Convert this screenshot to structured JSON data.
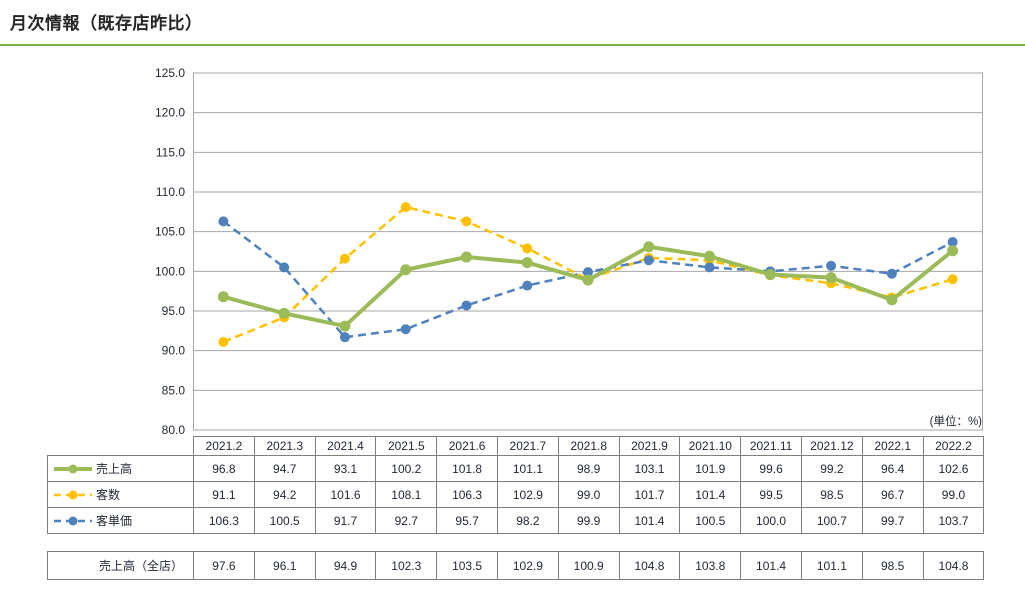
{
  "title": "月次情報（既存店昨比）",
  "unit_label": "(単位：%)",
  "colors": {
    "title_rule": "#74B33E",
    "grid": "#A6A6A6",
    "table_border": "#7F7F7F",
    "text": "#1F2633"
  },
  "chart_data": {
    "type": "line",
    "title": "月次情報（既存店昨比）",
    "unit": "%",
    "categories": [
      "2021.2",
      "2021.3",
      "2021.4",
      "2021.5",
      "2021.6",
      "2021.7",
      "2021.8",
      "2021.9",
      "2021.10",
      "2021.11",
      "2021.12",
      "2022.1",
      "2022.2"
    ],
    "series": [
      {
        "name": "売上高",
        "values": [
          96.8,
          94.7,
          93.1,
          100.2,
          101.8,
          101.1,
          98.9,
          103.1,
          101.9,
          99.6,
          99.2,
          96.4,
          102.6
        ],
        "color": "#9BBB59",
        "style": "solid",
        "width": 4,
        "marker_r": 5.5
      },
      {
        "name": "客数",
        "values": [
          91.1,
          94.2,
          101.6,
          108.1,
          106.3,
          102.9,
          99.0,
          101.7,
          101.4,
          99.5,
          98.5,
          96.7,
          99.0
        ],
        "color": "#FFC000",
        "style": "dashed",
        "width": 2.5,
        "marker_r": 5
      },
      {
        "name": "客単価",
        "values": [
          106.3,
          100.5,
          91.7,
          92.7,
          95.7,
          98.2,
          99.9,
          101.4,
          100.5,
          100.0,
          100.7,
          99.7,
          103.7
        ],
        "color": "#4F81BD",
        "style": "dashed",
        "width": 2.5,
        "marker_r": 5
      }
    ],
    "ylim": [
      80,
      125
    ],
    "ytick_step": 5,
    "grid": "horizontal",
    "legend_position": "table-left-column"
  },
  "all_store_row": {
    "label": "売上高（全店）",
    "values": [
      97.6,
      96.1,
      94.9,
      102.3,
      103.5,
      102.9,
      100.9,
      104.8,
      103.8,
      101.4,
      101.1,
      98.5,
      104.8
    ]
  }
}
